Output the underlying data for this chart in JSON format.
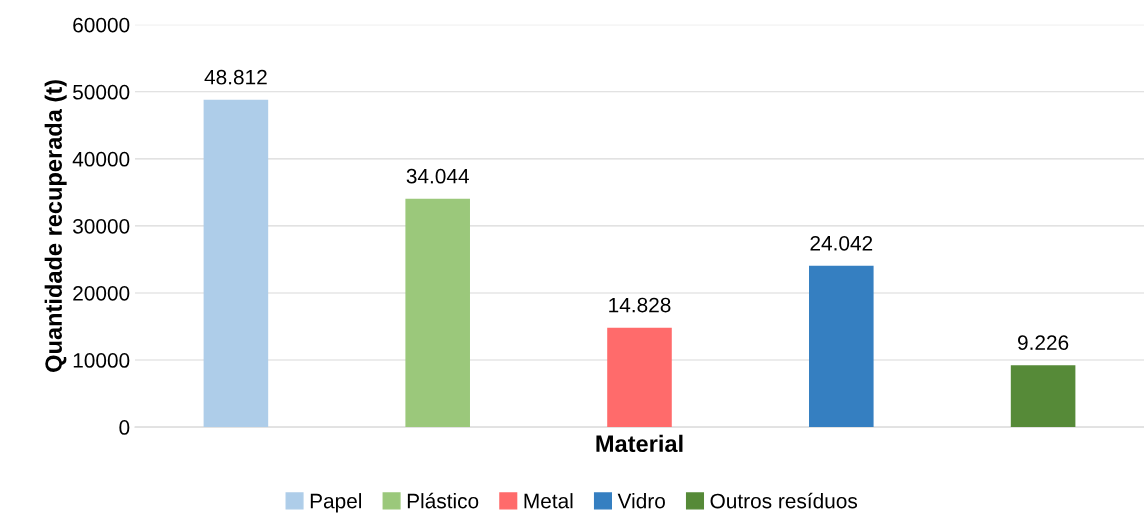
{
  "chart_data": {
    "type": "bar",
    "xlabel": "Material",
    "ylabel": "Quantidade recuperada (t)",
    "categories": [
      null,
      null,
      null,
      null,
      null
    ],
    "series": [
      {
        "name": "Papel",
        "color": "#aecde9",
        "values": [
          48812,
          null,
          null,
          null,
          null
        ],
        "value_labels": [
          "48.812",
          null,
          null,
          null,
          null
        ]
      },
      {
        "name": "Plástico",
        "color": "#9bc87b",
        "values": [
          null,
          34044,
          null,
          null,
          null
        ],
        "value_labels": [
          null,
          "34.044",
          null,
          null,
          null
        ]
      },
      {
        "name": "Metal",
        "color": "#ff6b6b",
        "values": [
          null,
          null,
          14828,
          null,
          null
        ],
        "value_labels": [
          null,
          null,
          "14.828",
          null,
          null
        ]
      },
      {
        "name": "Vidro",
        "color": "#357fc1",
        "values": [
          null,
          null,
          null,
          24042,
          null
        ],
        "value_labels": [
          null,
          null,
          null,
          "24.042",
          null
        ]
      },
      {
        "name": "Outros resíduos",
        "color": "#568a38",
        "values": [
          null,
          null,
          null,
          null,
          9226
        ],
        "value_labels": [
          null,
          null,
          null,
          null,
          "9.226"
        ]
      }
    ],
    "ylim": [
      0,
      60000
    ],
    "yticks": [
      0,
      10000,
      20000,
      30000,
      40000,
      50000,
      60000
    ],
    "grid": "y",
    "legend": "bottom"
  }
}
